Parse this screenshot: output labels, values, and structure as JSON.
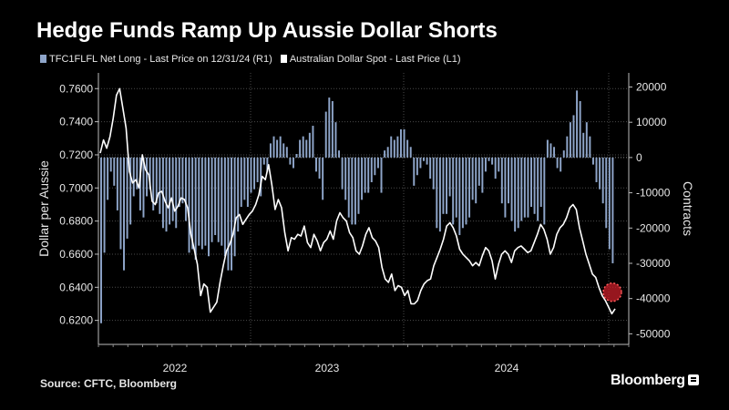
{
  "title": "Hedge Funds Ramp Up Aussie Dollar Shorts",
  "legend": [
    {
      "label": "TFC1FLFL Net Long - Last Price on 12/31/24 (R1)",
      "color": "#8ea5c9"
    },
    {
      "label": "Australian Dollar Spot - Last Price (L1)",
      "color": "#ffffff"
    }
  ],
  "source": "Source: CFTC, Bloomberg",
  "brand": "Bloomberg",
  "chart_data": {
    "type": "line",
    "title": "Hedge Funds Ramp Up Aussie Dollar Shorts",
    "xlabel": "",
    "x_ticks": [
      "2022",
      "2023",
      "2024"
    ],
    "left_axis": {
      "label": "Dollar per Aussie",
      "ticks": [
        "0.7600",
        "0.7400",
        "0.7200",
        "0.7000",
        "0.6800",
        "0.6600",
        "0.6400",
        "0.6200"
      ],
      "range": [
        0.6055,
        0.7695
      ]
    },
    "right_axis": {
      "label": "Contracts",
      "ticks": [
        "20000",
        "10000",
        "0",
        "-10000",
        "-20000",
        "-30000",
        "-40000",
        "-50000"
      ],
      "range": [
        -53000,
        24000
      ]
    },
    "grid": true,
    "annotation": "red dashed circle marking latest AUD spot (~0.637) at end of 2024",
    "series": [
      {
        "name": "TFC1FLFL Net Long - Last Price on 12/31/24 (R1)",
        "axis": "right",
        "kind": "bar",
        "color": "#8ea5c9",
        "period": "weekly, Jan 2022 - Dec 2024",
        "values": [
          -47000,
          -27000,
          -12000,
          -4000,
          -8000,
          -15000,
          -26000,
          -32000,
          -23000,
          -19000,
          -11000,
          -9000,
          -15000,
          -17000,
          -11000,
          -9000,
          -15000,
          -13000,
          -16000,
          -20000,
          -21000,
          -19000,
          -18000,
          -20000,
          -14000,
          -13000,
          -18000,
          -27000,
          -26000,
          -29000,
          -25000,
          -26000,
          -25000,
          -28000,
          -24000,
          -22000,
          -24000,
          -25000,
          -28000,
          -32000,
          -32000,
          -28000,
          -21000,
          -14000,
          -12000,
          -14000,
          -10000,
          -9000,
          -7000,
          -11000,
          -2000,
          -4000,
          4000,
          6000,
          5000,
          6000,
          4000,
          3000,
          -2000,
          -3000,
          1000,
          5000,
          6000,
          5000,
          7000,
          9000,
          -4000,
          -6000,
          -12000,
          13000,
          17000,
          16000,
          10000,
          2000,
          -9000,
          -12000,
          -17000,
          -19000,
          -19000,
          -16000,
          -12000,
          -10000,
          -10000,
          -7000,
          -5000,
          -3000,
          -10000,
          2000,
          3000,
          6000,
          5000,
          6000,
          8000,
          8000,
          5000,
          3000,
          -8000,
          -5000,
          -3000,
          -1000,
          -2000,
          -6000,
          -9000,
          -20000,
          -21000,
          -16000,
          -16000,
          -11000,
          -19000,
          -17000,
          -22000,
          -20000,
          -19000,
          -17000,
          -12000,
          -13000,
          -8000,
          -10000,
          -4000,
          -1000,
          -2000,
          -6000,
          -4000,
          -13000,
          -17000,
          -13000,
          -18000,
          -21000,
          -20000,
          -18000,
          -17000,
          -17000,
          -14000,
          -16000,
          -18000,
          -14000,
          -19000,
          5000,
          4000,
          3000,
          -3000,
          -4000,
          2000,
          6000,
          10000,
          12000,
          19000,
          16000,
          7000,
          10000,
          6000,
          -2000,
          -7000,
          -9000,
          -13000,
          -20000,
          -26000,
          -30000
        ]
      },
      {
        "name": "Australian Dollar Spot - Last Price (L1)",
        "axis": "left",
        "kind": "line",
        "color": "#ffffff",
        "period": "Jan 2022 - Dec 2024",
        "values": [
          0.721,
          0.729,
          0.724,
          0.731,
          0.742,
          0.756,
          0.76,
          0.748,
          0.736,
          0.71,
          0.703,
          0.705,
          0.7,
          0.72,
          0.711,
          0.708,
          0.692,
          0.69,
          0.697,
          0.698,
          0.692,
          0.688,
          0.694,
          0.686,
          0.689,
          0.694,
          0.693,
          0.688,
          0.672,
          0.663,
          0.654,
          0.635,
          0.642,
          0.64,
          0.625,
          0.628,
          0.631,
          0.643,
          0.653,
          0.662,
          0.666,
          0.672,
          0.682,
          0.684,
          0.678,
          0.681,
          0.684,
          0.686,
          0.69,
          0.696,
          0.707,
          0.705,
          0.714,
          0.702,
          0.687,
          0.693,
          0.688,
          0.673,
          0.662,
          0.67,
          0.669,
          0.672,
          0.671,
          0.677,
          0.667,
          0.664,
          0.672,
          0.668,
          0.662,
          0.667,
          0.669,
          0.674,
          0.669,
          0.68,
          0.685,
          0.682,
          0.68,
          0.673,
          0.67,
          0.662,
          0.66,
          0.665,
          0.672,
          0.676,
          0.67,
          0.668,
          0.664,
          0.652,
          0.645,
          0.643,
          0.648,
          0.638,
          0.641,
          0.64,
          0.635,
          0.638,
          0.63,
          0.63,
          0.632,
          0.638,
          0.642,
          0.644,
          0.645,
          0.653,
          0.658,
          0.663,
          0.669,
          0.677,
          0.679,
          0.676,
          0.671,
          0.663,
          0.66,
          0.658,
          0.656,
          0.653,
          0.655,
          0.653,
          0.659,
          0.664,
          0.662,
          0.656,
          0.645,
          0.654,
          0.66,
          0.662,
          0.66,
          0.655,
          0.662,
          0.664,
          0.665,
          0.663,
          0.661,
          0.662,
          0.667,
          0.672,
          0.678,
          0.675,
          0.669,
          0.66,
          0.664,
          0.672,
          0.676,
          0.678,
          0.682,
          0.688,
          0.69,
          0.687,
          0.676,
          0.668,
          0.66,
          0.654,
          0.648,
          0.646,
          0.64,
          0.635,
          0.632,
          0.628,
          0.624,
          0.627
        ]
      }
    ]
  }
}
